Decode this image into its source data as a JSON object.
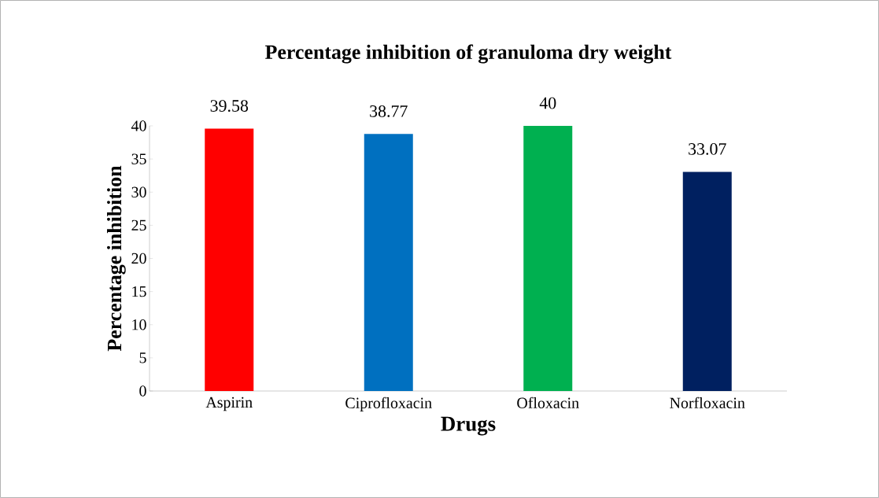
{
  "chart_data": {
    "type": "bar",
    "title": "Percentage inhibition of granuloma dry weight",
    "xlabel": "Drugs",
    "ylabel": "Percentage inhibition",
    "categories": [
      "Aspirin",
      "Ciprofloxacin",
      "Ofloxacin",
      "Norfloxacin"
    ],
    "values": [
      39.58,
      38.77,
      40,
      33.07
    ],
    "colors": [
      "#ff0000",
      "#0070c0",
      "#00b050",
      "#002060"
    ],
    "ylim": [
      0,
      40
    ],
    "yticks": [
      0,
      5,
      10,
      15,
      20,
      25,
      30,
      35,
      40
    ],
    "data_labels": true,
    "grid": false
  }
}
